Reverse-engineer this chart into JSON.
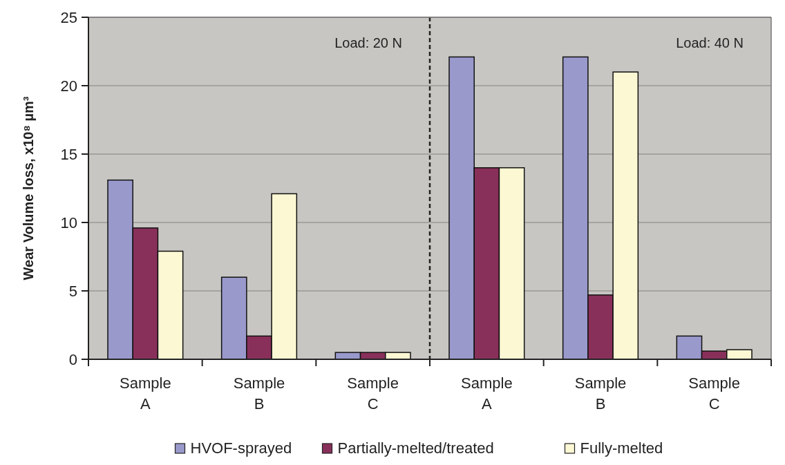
{
  "chart_data": {
    "type": "bar",
    "ylabel": "Wear Volume loss, x10⁸ µm³",
    "categories": [
      "Sample A",
      "Sample B",
      "Sample C",
      "Sample A",
      "Sample B",
      "Sample C"
    ],
    "series": [
      {
        "name": "HVOF-sprayed",
        "color": "#9999cc",
        "values": [
          13.1,
          6.0,
          0.5,
          22.1,
          22.1,
          1.7
        ]
      },
      {
        "name": "Partially-melted/treated",
        "color": "#88305a",
        "values": [
          9.6,
          1.7,
          0.5,
          14.0,
          4.7,
          0.6
        ]
      },
      {
        "name": "Fully-melted",
        "color": "#fdf8d4",
        "values": [
          7.9,
          12.1,
          0.5,
          14.0,
          21.0,
          0.7
        ]
      }
    ],
    "ylim": [
      0,
      25
    ],
    "yticks": [
      0,
      5,
      10,
      15,
      20,
      25
    ],
    "grid": "y",
    "legend": "bottom",
    "annotations": [
      "Load: 20 N",
      "Load: 40 N"
    ]
  }
}
